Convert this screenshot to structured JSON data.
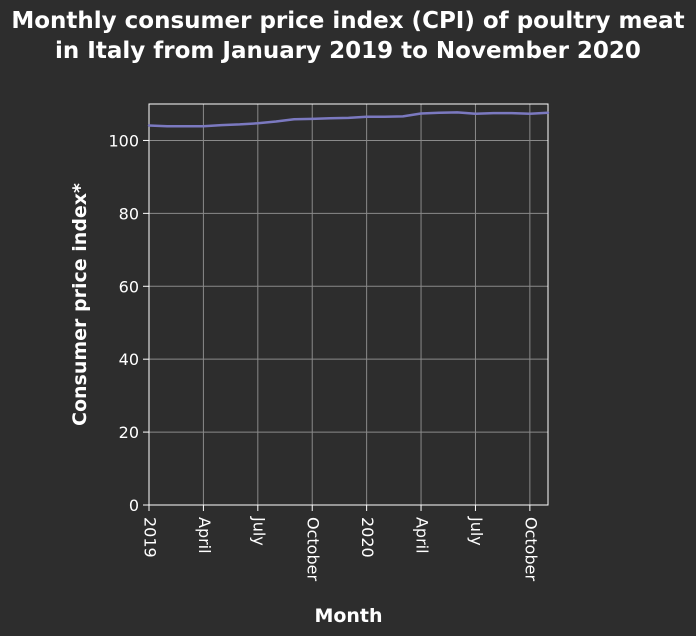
{
  "chart_data": {
    "type": "line",
    "title": "Monthly consumer price index (CPI) of poultry meat in Italy from January 2019 to November 2020",
    "xlabel": "Month",
    "ylabel": "Consumer price index*",
    "x": [
      "2019-01",
      "2019-02",
      "2019-03",
      "2019-04",
      "2019-05",
      "2019-06",
      "2019-07",
      "2019-08",
      "2019-09",
      "2019-10",
      "2019-11",
      "2019-12",
      "2020-01",
      "2020-02",
      "2020-03",
      "2020-04",
      "2020-05",
      "2020-06",
      "2020-07",
      "2020-08",
      "2020-09",
      "2020-10",
      "2020-11"
    ],
    "xlim": [
      "2019-01",
      "2020-11"
    ],
    "x_ticks": [
      {
        "x": "2019-01",
        "label": "2019"
      },
      {
        "x": "2019-04",
        "label": "April"
      },
      {
        "x": "2019-07",
        "label": "July"
      },
      {
        "x": "2019-10",
        "label": "October"
      },
      {
        "x": "2020-01",
        "label": "2020"
      },
      {
        "x": "2020-04",
        "label": "April"
      },
      {
        "x": "2020-07",
        "label": "July"
      },
      {
        "x": "2020-10",
        "label": "October"
      }
    ],
    "series": [
      {
        "values": [
          104.1,
          103.9,
          103.9,
          103.9,
          104.2,
          104.4,
          104.7,
          105.2,
          105.8,
          105.9,
          106.1,
          106.2,
          106.5,
          106.5,
          106.6,
          107.4,
          107.6,
          107.7,
          107.3,
          107.5,
          107.5,
          107.3,
          107.6
        ],
        "color": "#7b79c0"
      }
    ],
    "ylim": [
      0,
      110
    ],
    "y_ticks": [
      0,
      20,
      40,
      60,
      80,
      100
    ],
    "grid": true,
    "colors": {
      "background": "#2d2d2d",
      "grid": "#8a8a8a",
      "axis": "#ffffff",
      "text": "#ffffff",
      "line": "#7b79c0"
    }
  }
}
